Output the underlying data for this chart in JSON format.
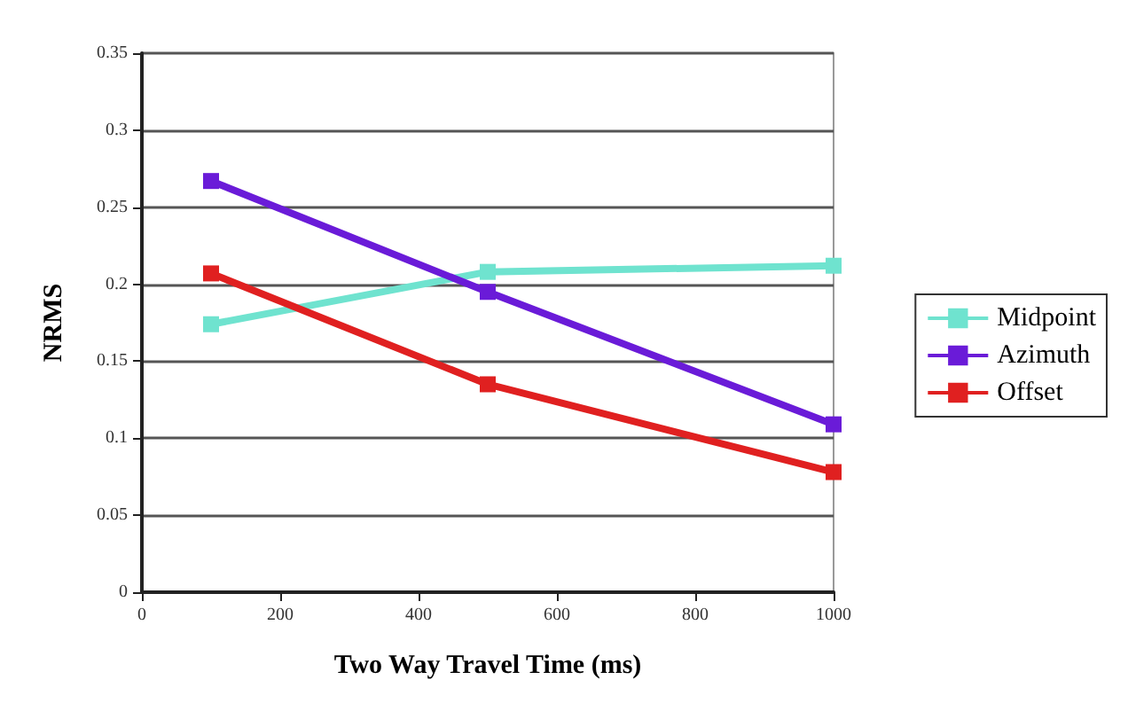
{
  "chart_data": {
    "type": "line",
    "xlabel": "Two Way Travel Time (ms)",
    "ylabel": "NRMS",
    "x": [
      100,
      500,
      1000
    ],
    "series": [
      {
        "name": "Midpoint",
        "color": "#6fe3cf",
        "values": [
          0.174,
          0.208,
          0.212
        ]
      },
      {
        "name": "Azimuth",
        "color": "#6a1bd8",
        "values": [
          0.267,
          0.195,
          0.109
        ]
      },
      {
        "name": "Offset",
        "color": "#e02020",
        "values": [
          0.207,
          0.135,
          0.078
        ]
      }
    ],
    "xlim": [
      0,
      1000
    ],
    "xticks": [
      0,
      200,
      400,
      600,
      800,
      1000
    ],
    "ylim": [
      0,
      0.35
    ],
    "yticks": [
      0,
      0.05,
      0.1,
      0.15,
      0.2,
      0.25,
      0.3,
      0.35
    ],
    "grid": "y",
    "legend": "right",
    "marker": "square",
    "line_style": "solid"
  }
}
